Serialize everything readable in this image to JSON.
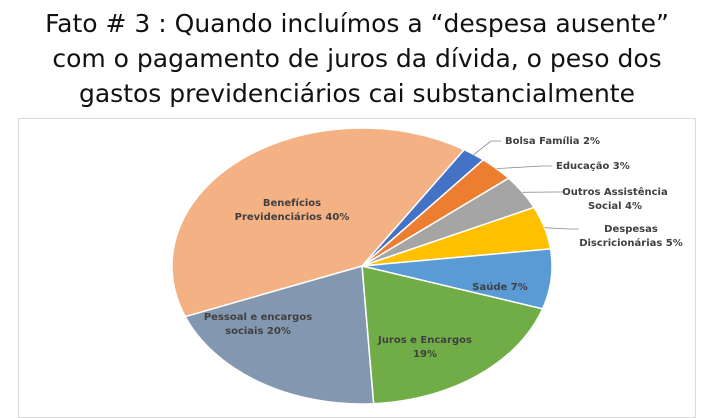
{
  "title_lines": [
    "Fato # 3 : Quando incluímos a “despesa ausente”",
    "com o pagamento de juros da dívida, o peso dos",
    "gastos previdenciários cai substancialmente"
  ],
  "chart_data": {
    "type": "pie",
    "title": "Fato # 3 : Quando incluímos a “despesa ausente” com o pagamento de juros da dívida, o peso dos gastos previdenciários cai substancialmente",
    "slices": [
      {
        "label": "Bolsa Família",
        "value": 2,
        "color": "#4472c4",
        "display": [
          "Bolsa Família 2%"
        ]
      },
      {
        "label": "Educação",
        "value": 3,
        "color": "#ed7d31",
        "display": [
          "Educação 3%"
        ]
      },
      {
        "label": "Outros Assistência Social",
        "value": 4,
        "color": "#a5a5a5",
        "display": [
          "Outros Assistência",
          "Social 4%"
        ]
      },
      {
        "label": "Despesas Discricionárias",
        "value": 5,
        "color": "#ffc000",
        "display": [
          "Despesas",
          "Discricionárias 5%"
        ]
      },
      {
        "label": "Saúde",
        "value": 7,
        "color": "#5b9bd5",
        "display": [
          "Saúde 7%"
        ]
      },
      {
        "label": "Juros e Encargos",
        "value": 19,
        "color": "#70ad47",
        "display": [
          "Juros e Encargos",
          "19%"
        ]
      },
      {
        "label": "Pessoal e encargos sociais",
        "value": 20,
        "color": "#8497b0",
        "display": [
          "Pessoal e encargos",
          "sociais  20%"
        ]
      },
      {
        "label": "Benefícios Previdenciários",
        "value": 40,
        "color": "#f4b183",
        "display": [
          "Benefícios",
          "Previdenciários  40%"
        ]
      }
    ],
    "legend": "none"
  }
}
